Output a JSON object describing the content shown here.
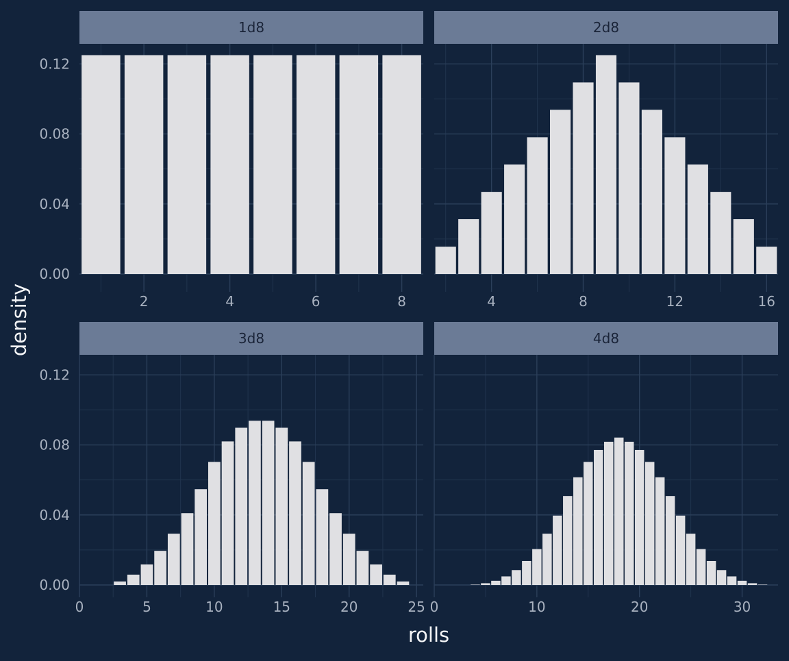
{
  "chart_data": {
    "type": "bar",
    "xlabel": "rolls",
    "ylabel": "density",
    "ylim": [
      0,
      0.13
    ],
    "y_ticks": [
      0,
      0.04,
      0.08,
      0.12
    ],
    "y_tick_labels": [
      "0.00",
      "0.04",
      "0.08",
      "0.12"
    ],
    "grid": true,
    "legend": "none",
    "panels": [
      {
        "label": "1d8",
        "xlim": [
          0.5,
          8.5
        ],
        "x_ticks": [
          2,
          4,
          6,
          8
        ],
        "x": [
          1,
          2,
          3,
          4,
          5,
          6,
          7,
          8
        ],
        "values": [
          0.125,
          0.125,
          0.125,
          0.125,
          0.125,
          0.125,
          0.125,
          0.125
        ]
      },
      {
        "label": "2d8",
        "xlim": [
          1.5,
          16.5
        ],
        "x_ticks": [
          4,
          8,
          12,
          16
        ],
        "x": [
          2,
          3,
          4,
          5,
          6,
          7,
          8,
          9,
          10,
          11,
          12,
          13,
          14,
          15,
          16
        ],
        "values": [
          0.0156,
          0.0313,
          0.0469,
          0.0625,
          0.0781,
          0.0938,
          0.1094,
          0.125,
          0.1094,
          0.0938,
          0.0781,
          0.0625,
          0.0469,
          0.0313,
          0.0156
        ]
      },
      {
        "label": "3d8",
        "xlim": [
          0,
          25.5
        ],
        "x_ticks": [
          0,
          5,
          10,
          15,
          20,
          25
        ],
        "x": [
          3,
          4,
          5,
          6,
          7,
          8,
          9,
          10,
          11,
          12,
          13,
          14,
          15,
          16,
          17,
          18,
          19,
          20,
          21,
          22,
          23,
          24
        ],
        "values": [
          0.002,
          0.0059,
          0.0117,
          0.0195,
          0.0293,
          0.041,
          0.0547,
          0.0703,
          0.082,
          0.0898,
          0.0938,
          0.0938,
          0.0898,
          0.082,
          0.0703,
          0.0547,
          0.041,
          0.0293,
          0.0195,
          0.0117,
          0.0059,
          0.002
        ]
      },
      {
        "label": "4d8",
        "xlim": [
          0,
          33.5
        ],
        "x_ticks": [
          0,
          10,
          20,
          30
        ],
        "x": [
          4,
          5,
          6,
          7,
          8,
          9,
          10,
          11,
          12,
          13,
          14,
          15,
          16,
          17,
          18,
          19,
          20,
          21,
          22,
          23,
          24,
          25,
          26,
          27,
          28,
          29,
          30,
          31,
          32
        ],
        "values": [
          0.0002,
          0.001,
          0.0024,
          0.0049,
          0.0085,
          0.0137,
          0.0205,
          0.0293,
          0.0396,
          0.0508,
          0.0615,
          0.0703,
          0.0771,
          0.0818,
          0.0842,
          0.0818,
          0.0771,
          0.0703,
          0.0615,
          0.0508,
          0.0396,
          0.0293,
          0.0205,
          0.0137,
          0.0085,
          0.0049,
          0.0024,
          0.001,
          0.0002
        ]
      }
    ]
  }
}
